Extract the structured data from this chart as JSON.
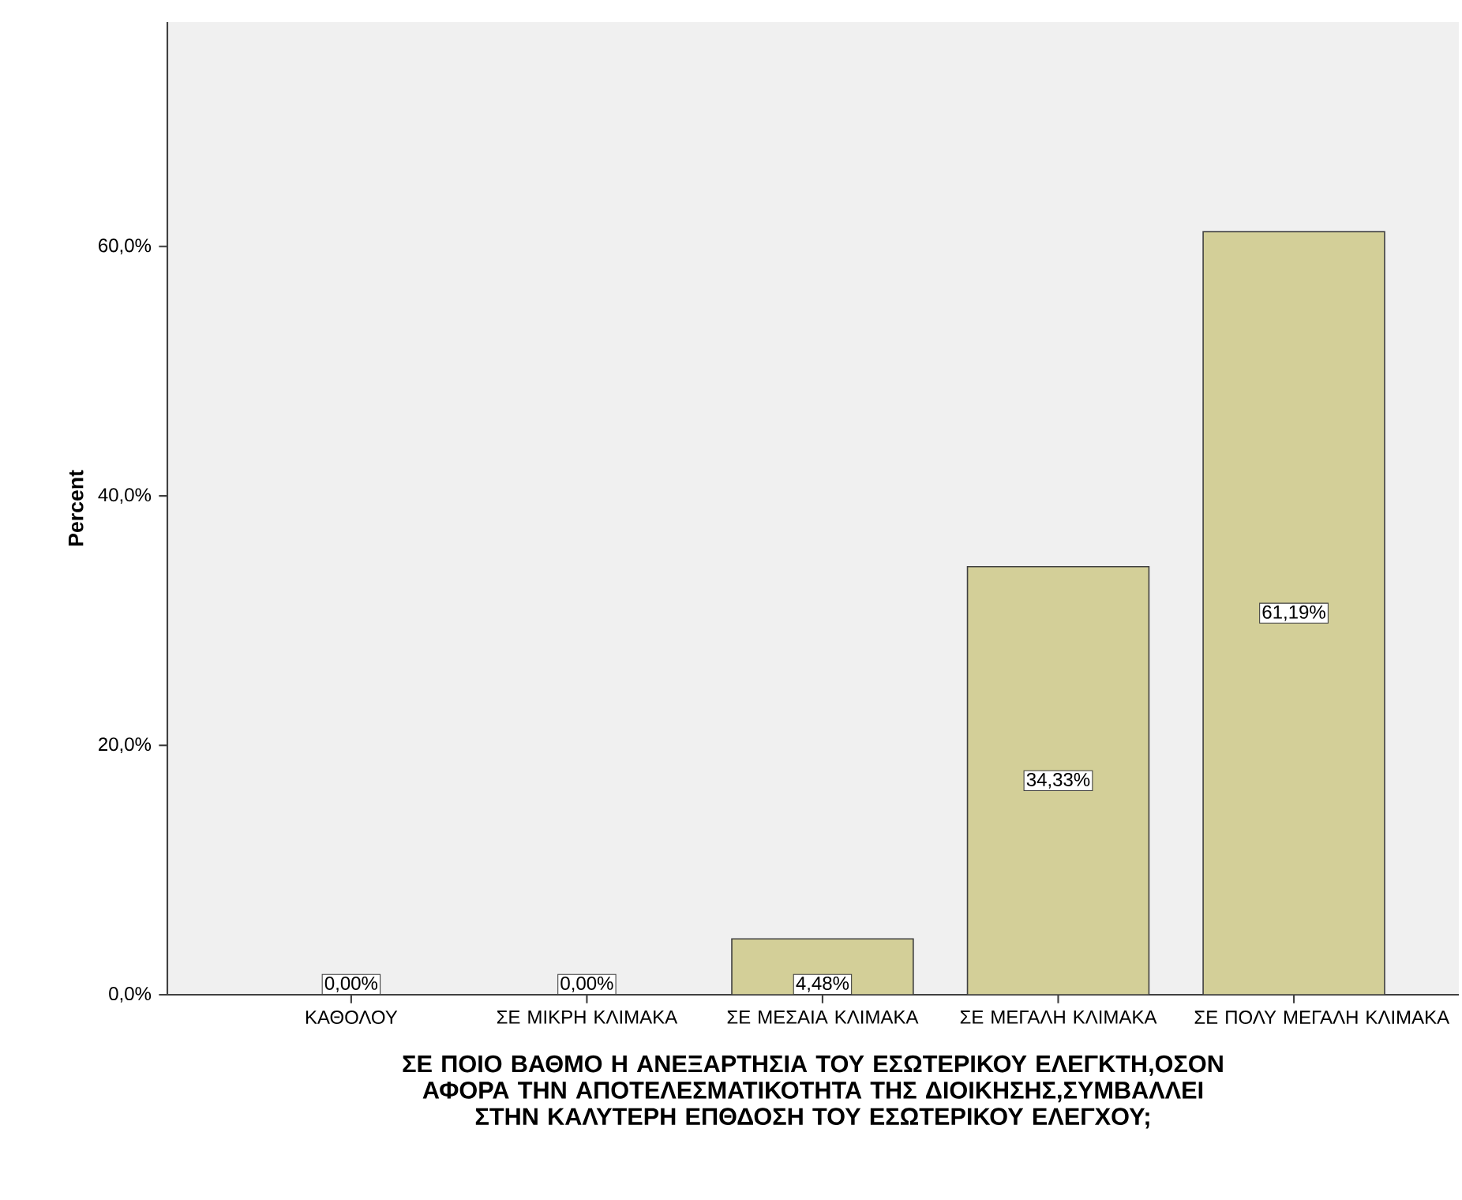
{
  "chart_data": {
    "type": "bar",
    "categories": [
      "ΚΑΘΟΛΟΥ",
      "ΣΕ ΜΙΚΡΗ ΚΛΙΜΑΚΑ",
      "ΣΕ ΜΕΣΑΙΑ ΚΛΙΜΑΚΑ",
      "ΣΕ ΜΕΓΑΛΗ ΚΛΙΜΑΚΑ",
      "ΣΕ ΠΟΛΥ ΜΕΓΑΛΗ ΚΛΙΜΑΚΑ"
    ],
    "values": [
      0.0,
      0.0,
      4.48,
      34.33,
      61.19
    ],
    "value_labels": [
      "0,00%",
      "0,00%",
      "4,48%",
      "34,33%",
      "61,19%"
    ],
    "color": "#d3cf98",
    "ylabel": "Percent",
    "xlabel": "ΣΕ ΠΟΙΟ ΒΑΘΜΟ Η ΑΝΕΞΑΡΤΗΣΙΑ ΤΟΥ ΕΣΩΤΕΡΙΚΟΥ ΕΛΕΓΚΤΗ,ΟΣΟΝ ΑΦΟΡΑ ΤΗΝ ΑΠΟΤΕΛΕΣΜΑΤΙΚΟΤΗΤΑ ΤΗΣ ΔΙΟΙΚΗΣΗΣ,ΣΥΜΒΑΛΛΕΙ ΣΤΗΝ ΚΑΛΥΤΕΡΗ ΕΠΘΔΟΣΗ ΤΟΥ ΕΣΩΤΕΡΙΚΟΥ ΕΛΕΓΧΟΥ;",
    "ylim": [
      0,
      78
    ],
    "yticks": [
      {
        "value": 0,
        "label": "0,0%"
      },
      {
        "value": 20,
        "label": "20,0%"
      },
      {
        "value": 40,
        "label": "40,0%"
      },
      {
        "value": 60,
        "label": "60,0%"
      }
    ]
  }
}
